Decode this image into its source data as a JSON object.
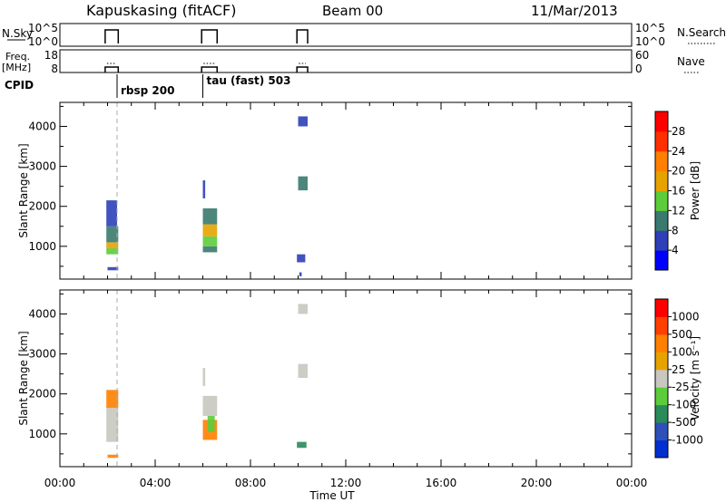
{
  "header": {
    "site": "Kapuskasing (fitACF)",
    "beam": "Beam 00",
    "date": "11/Mar/2013"
  },
  "strips": {
    "nsky_label": "N.Sky",
    "nsky_ticks": [
      "10^5",
      "10^0"
    ],
    "nsearch_label": "N.Search",
    "freq_label_1": "Freq.",
    "freq_label_2": "[MHz]",
    "freq_ticks": [
      "18",
      "8"
    ],
    "nave_ticks": [
      "60",
      "0"
    ],
    "nave_label": "Nave",
    "cpid_label": "CPID",
    "cpid_entries": [
      {
        "time": 2.4,
        "label": "rbsp 200"
      },
      {
        "time": 6.0,
        "label": "tau (fast) 503"
      }
    ],
    "operation_periods": [
      [
        1.9,
        2.45
      ],
      [
        5.95,
        6.6
      ],
      [
        9.95,
        10.4
      ]
    ]
  },
  "chart_data": [
    {
      "type": "heatmap",
      "ylabel": "Slant Range [km]",
      "xlabel": "Time UT",
      "x_ticks": [
        "00:00",
        "04:00",
        "08:00",
        "12:00",
        "16:00",
        "20:00",
        "00:00"
      ],
      "xlim": [
        0,
        24
      ],
      "ylim": [
        180,
        4600
      ],
      "y_ticks": [
        1000,
        2000,
        3000,
        4000
      ],
      "colorbar": {
        "label": "Power [dB]",
        "ticks": [
          "4",
          "8",
          "12",
          "16",
          "20",
          "24",
          "28"
        ],
        "colors": [
          "#0000ff",
          "#2e3fb8",
          "#3a7a6e",
          "#5dcc3a",
          "#e6a300",
          "#ff8000",
          "#ff3000",
          "#ff0000"
        ]
      },
      "patches": [
        {
          "t": [
            2.0,
            2.45
          ],
          "r": [
            400,
            480
          ],
          "level": 1
        },
        {
          "t": [
            1.95,
            2.45
          ],
          "r": [
            800,
            950
          ],
          "level": 3
        },
        {
          "t": [
            1.95,
            2.45
          ],
          "r": [
            950,
            1100
          ],
          "level": 4
        },
        {
          "t": [
            1.95,
            2.45
          ],
          "r": [
            1100,
            1500
          ],
          "level": 2
        },
        {
          "t": [
            1.95,
            2.4
          ],
          "r": [
            1500,
            2150
          ],
          "level": 1
        },
        {
          "t": [
            6.0,
            6.6
          ],
          "r": [
            850,
            1000
          ],
          "level": 2
        },
        {
          "t": [
            6.0,
            6.6
          ],
          "r": [
            1000,
            1250
          ],
          "level": 3
        },
        {
          "t": [
            6.0,
            6.6
          ],
          "r": [
            1250,
            1550
          ],
          "level": 4
        },
        {
          "t": [
            6.0,
            6.6
          ],
          "r": [
            1550,
            1950
          ],
          "level": 2
        },
        {
          "t": [
            6.0,
            6.1
          ],
          "r": [
            2200,
            2650
          ],
          "level": 1
        },
        {
          "t": [
            9.95,
            10.3
          ],
          "r": [
            600,
            800
          ],
          "level": 1
        },
        {
          "t": [
            10.0,
            10.4
          ],
          "r": [
            2400,
            2750
          ],
          "level": 2
        },
        {
          "t": [
            10.0,
            10.4
          ],
          "r": [
            4000,
            4250
          ],
          "level": 1
        },
        {
          "t": [
            10.05,
            10.15
          ],
          "r": [
            250,
            350
          ],
          "level": 1
        }
      ]
    },
    {
      "type": "heatmap",
      "ylabel": "Slant Range [km]",
      "xlabel": "Time UT",
      "x_ticks": [
        "00:00",
        "04:00",
        "08:00",
        "12:00",
        "16:00",
        "20:00",
        "00:00"
      ],
      "xlim": [
        0,
        24
      ],
      "ylim": [
        180,
        4600
      ],
      "y_ticks": [
        1000,
        2000,
        3000,
        4000
      ],
      "colorbar": {
        "label": "Velocity [m s⁻¹]",
        "ticks": [
          "1000",
          "500",
          "100",
          "25",
          "-25",
          "-100",
          "-500",
          "-1000"
        ],
        "colors": [
          "#0030d0",
          "#2e50b8",
          "#2a8a5a",
          "#5dcc3a",
          "#c8c8c0",
          "#e6a300",
          "#ff8000",
          "#ff4000",
          "#ff0000"
        ]
      },
      "patches": [
        {
          "t": [
            2.0,
            2.45
          ],
          "r": [
            400,
            480
          ],
          "level": 6
        },
        {
          "t": [
            1.95,
            2.45
          ],
          "r": [
            800,
            1650
          ],
          "level": 4
        },
        {
          "t": [
            1.95,
            2.45
          ],
          "r": [
            1650,
            2100
          ],
          "level": 6
        },
        {
          "t": [
            6.0,
            6.6
          ],
          "r": [
            850,
            1350
          ],
          "level": 6
        },
        {
          "t": [
            6.2,
            6.5
          ],
          "r": [
            1050,
            1450
          ],
          "level": 3
        },
        {
          "t": [
            6.0,
            6.6
          ],
          "r": [
            1450,
            1950
          ],
          "level": 4
        },
        {
          "t": [
            6.0,
            6.1
          ],
          "r": [
            2200,
            2650
          ],
          "level": 4
        },
        {
          "t": [
            9.95,
            10.35
          ],
          "r": [
            650,
            800
          ],
          "level": 2
        },
        {
          "t": [
            10.0,
            10.4
          ],
          "r": [
            2400,
            2750
          ],
          "level": 4
        },
        {
          "t": [
            10.0,
            10.4
          ],
          "r": [
            4000,
            4250
          ],
          "level": 4
        }
      ]
    }
  ]
}
